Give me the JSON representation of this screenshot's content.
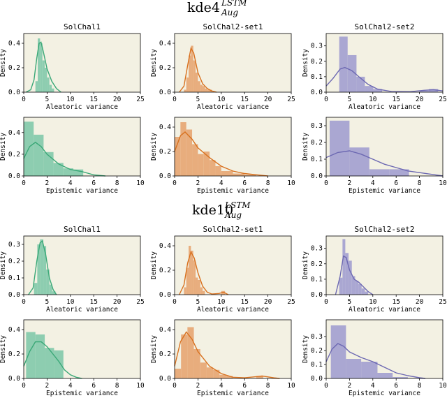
{
  "figure": {
    "blocks": [
      {
        "title_main": "kde4",
        "title_sup": "LSTM",
        "title_sub": "Aug"
      },
      {
        "title_main": "kde10",
        "title_sup": "LSTM",
        "title_sub": "Aug"
      }
    ]
  },
  "colors": {
    "panel_bg": "#f3f1e3",
    "green": "#3aa877",
    "orange": "#d8711f",
    "purple": "#6c68b2"
  },
  "chart_data": [
    {
      "type": "bar",
      "title": "SolChal1",
      "xlabel": "Aleatoric variance",
      "ylabel": "Density",
      "xlim": [
        0,
        25
      ],
      "ylim": [
        0,
        0.48
      ],
      "xticks": [
        0,
        5,
        10,
        15,
        20,
        25
      ],
      "yticks": [
        0.0,
        0.2,
        0.4
      ],
      "color": "green",
      "bins": [
        [
          2.5,
          3.0,
          0.09
        ],
        [
          3.0,
          3.5,
          0.44
        ],
        [
          3.5,
          4.0,
          0.4
        ],
        [
          4.0,
          4.5,
          0.26
        ],
        [
          4.5,
          5.0,
          0.2
        ],
        [
          5.0,
          5.5,
          0.12
        ],
        [
          5.5,
          6.0,
          0.06
        ],
        [
          6.0,
          6.5,
          0.03
        ]
      ],
      "kde": [
        [
          0.5,
          0.0
        ],
        [
          1.5,
          0.02
        ],
        [
          2.2,
          0.1
        ],
        [
          2.8,
          0.28
        ],
        [
          3.3,
          0.4
        ],
        [
          3.7,
          0.41
        ],
        [
          4.2,
          0.33
        ],
        [
          5.0,
          0.19
        ],
        [
          6.0,
          0.09
        ],
        [
          7.0,
          0.03
        ],
        [
          8.0,
          0.0
        ]
      ]
    },
    {
      "type": "bar",
      "title": "SolChal2-set1",
      "xlabel": "Aleatoric variance",
      "ylabel": "Density",
      "xlim": [
        0,
        25
      ],
      "ylim": [
        0,
        0.48
      ],
      "xticks": [
        0,
        5,
        10,
        15,
        20,
        25
      ],
      "yticks": [
        0.0,
        0.2,
        0.4
      ],
      "color": "orange",
      "bins": [
        [
          2.0,
          2.5,
          0.02
        ],
        [
          2.5,
          3.0,
          0.12
        ],
        [
          3.0,
          3.5,
          0.3
        ],
        [
          3.5,
          4.0,
          0.38
        ],
        [
          4.0,
          4.5,
          0.26
        ],
        [
          4.5,
          5.0,
          0.16
        ],
        [
          5.0,
          5.5,
          0.09
        ],
        [
          5.5,
          6.0,
          0.06
        ],
        [
          6.0,
          6.5,
          0.05
        ],
        [
          6.5,
          7.0,
          0.03
        ],
        [
          7.0,
          8.0,
          0.02
        ]
      ],
      "kde": [
        [
          1.0,
          0.0
        ],
        [
          2.0,
          0.05
        ],
        [
          2.8,
          0.22
        ],
        [
          3.5,
          0.36
        ],
        [
          4.1,
          0.32
        ],
        [
          5.0,
          0.16
        ],
        [
          6.0,
          0.07
        ],
        [
          7.0,
          0.03
        ],
        [
          8.0,
          0.01
        ],
        [
          9.0,
          0.0
        ]
      ]
    },
    {
      "type": "bar",
      "title": "SolChal2-set2",
      "xlabel": "Aleatoric variance",
      "ylabel": "Density",
      "xlim": [
        0,
        25
      ],
      "ylim": [
        0,
        0.38
      ],
      "xticks": [
        0,
        5,
        10,
        15,
        20,
        25
      ],
      "yticks": [
        0.0,
        0.1,
        0.2,
        0.3
      ],
      "color": "purple",
      "bins": [
        [
          2.8,
          4.6,
          0.36
        ],
        [
          4.6,
          6.5,
          0.24
        ],
        [
          6.5,
          8.3,
          0.1
        ],
        [
          8.3,
          10.1,
          0.04
        ],
        [
          10.1,
          12.0,
          0.02
        ],
        [
          20.0,
          22.0,
          0.01
        ],
        [
          22.0,
          24.0,
          0.02
        ]
      ],
      "kde": [
        [
          0,
          0.04
        ],
        [
          1.5,
          0.09
        ],
        [
          3.0,
          0.15
        ],
        [
          4.0,
          0.16
        ],
        [
          5.5,
          0.14
        ],
        [
          7.0,
          0.1
        ],
        [
          9.0,
          0.05
        ],
        [
          11.0,
          0.02
        ],
        [
          14.0,
          0.004
        ],
        [
          18.0,
          0.003
        ],
        [
          21.0,
          0.012
        ],
        [
          23.0,
          0.016
        ],
        [
          25.0,
          0.008
        ]
      ]
    },
    {
      "type": "bar",
      "title": "",
      "xlabel": "Epistemic variance",
      "ylabel": "Density",
      "xlim": [
        0,
        10
      ],
      "ylim": [
        0,
        0.54
      ],
      "xticks": [
        0,
        2,
        4,
        6,
        8,
        10
      ],
      "yticks": [
        0.0,
        0.2,
        0.4
      ],
      "color": "green",
      "bins": [
        [
          0,
          0.85,
          0.5
        ],
        [
          0.85,
          1.7,
          0.38
        ],
        [
          1.7,
          2.55,
          0.22
        ],
        [
          2.55,
          3.4,
          0.12
        ],
        [
          3.4,
          4.25,
          0.07
        ],
        [
          4.25,
          5.1,
          0.06
        ]
      ],
      "kde": [
        [
          0,
          0.16
        ],
        [
          0.5,
          0.27
        ],
        [
          1.0,
          0.31
        ],
        [
          1.5,
          0.27
        ],
        [
          2.0,
          0.2
        ],
        [
          3.0,
          0.11
        ],
        [
          4.0,
          0.06
        ],
        [
          5.0,
          0.04
        ],
        [
          6.0,
          0.01
        ],
        [
          7.0,
          0.0
        ]
      ]
    },
    {
      "type": "bar",
      "title": "",
      "xlabel": "Epistemic variance",
      "ylabel": "Density",
      "xlim": [
        0,
        10
      ],
      "ylim": [
        0,
        0.48
      ],
      "xticks": [
        0,
        2,
        4,
        6,
        8,
        10
      ],
      "yticks": [
        0.0,
        0.2,
        0.4
      ],
      "color": "orange",
      "bins": [
        [
          0,
          0.5,
          0.32
        ],
        [
          0.5,
          1.0,
          0.44
        ],
        [
          1.0,
          1.5,
          0.38
        ],
        [
          1.5,
          2.0,
          0.26
        ],
        [
          2.0,
          2.5,
          0.18
        ],
        [
          2.5,
          3.0,
          0.2
        ],
        [
          3.0,
          3.5,
          0.13
        ],
        [
          3.5,
          4.0,
          0.08
        ],
        [
          4.0,
          5.0,
          0.04
        ],
        [
          5.0,
          6.0,
          0.02
        ],
        [
          6.0,
          7.0,
          0.01
        ]
      ],
      "kde": [
        [
          0,
          0.2
        ],
        [
          0.5,
          0.33
        ],
        [
          0.9,
          0.36
        ],
        [
          1.5,
          0.3
        ],
        [
          2.0,
          0.23
        ],
        [
          3.0,
          0.15
        ],
        [
          4.0,
          0.08
        ],
        [
          5.0,
          0.04
        ],
        [
          6.0,
          0.02
        ],
        [
          7.0,
          0.01
        ],
        [
          8.0,
          0.0
        ]
      ]
    },
    {
      "type": "bar",
      "title": "",
      "xlabel": "Epistemic variance",
      "ylabel": "Density",
      "xlim": [
        0,
        10
      ],
      "ylim": [
        0,
        0.35
      ],
      "xticks": [
        0,
        2,
        4,
        6,
        8,
        10
      ],
      "yticks": [
        0.0,
        0.1,
        0.2,
        0.3
      ],
      "color": "purple",
      "bins": [
        [
          0.3,
          2.0,
          0.33
        ],
        [
          2.0,
          3.7,
          0.17
        ],
        [
          3.7,
          5.4,
          0.04
        ],
        [
          5.4,
          7.1,
          0.04
        ]
      ],
      "kde": [
        [
          0,
          0.11
        ],
        [
          1.0,
          0.14
        ],
        [
          2.0,
          0.15
        ],
        [
          3.0,
          0.13
        ],
        [
          4.0,
          0.1
        ],
        [
          5.0,
          0.07
        ],
        [
          6.0,
          0.05
        ],
        [
          7.0,
          0.03
        ],
        [
          8.0,
          0.02
        ],
        [
          9.0,
          0.01
        ],
        [
          10.0,
          0.0
        ]
      ]
    },
    {
      "type": "bar",
      "title": "SolChal1",
      "xlabel": "Aleatoric variance",
      "ylabel": "Density",
      "xlim": [
        0,
        25
      ],
      "ylim": [
        0,
        0.35
      ],
      "xticks": [
        0,
        5,
        10,
        15,
        20,
        25
      ],
      "yticks": [
        0.0,
        0.1,
        0.2,
        0.3
      ],
      "color": "green",
      "bins": [
        [
          2.2,
          2.9,
          0.07
        ],
        [
          2.9,
          3.5,
          0.3
        ],
        [
          3.5,
          4.2,
          0.33
        ],
        [
          4.2,
          4.8,
          0.29
        ],
        [
          4.8,
          5.5,
          0.15
        ],
        [
          5.5,
          6.1,
          0.06
        ],
        [
          6.1,
          6.8,
          0.02
        ]
      ],
      "kde": [
        [
          1.0,
          0.0
        ],
        [
          2.0,
          0.04
        ],
        [
          2.8,
          0.2
        ],
        [
          3.5,
          0.31
        ],
        [
          4.0,
          0.32
        ],
        [
          4.7,
          0.24
        ],
        [
          5.5,
          0.1
        ],
        [
          6.3,
          0.03
        ],
        [
          7.0,
          0.0
        ]
      ]
    },
    {
      "type": "bar",
      "title": "SolChal2-set1",
      "xlabel": "Aleatoric variance",
      "ylabel": "Density",
      "xlim": [
        0,
        25
      ],
      "ylim": [
        0,
        0.48
      ],
      "xticks": [
        0,
        5,
        10,
        15,
        20,
        25
      ],
      "yticks": [
        0.0,
        0.2,
        0.4
      ],
      "color": "orange",
      "bins": [
        [
          2.0,
          2.5,
          0.06
        ],
        [
          2.5,
          3.0,
          0.22
        ],
        [
          3.0,
          3.5,
          0.4
        ],
        [
          3.5,
          4.0,
          0.36
        ],
        [
          4.0,
          4.5,
          0.28
        ],
        [
          4.5,
          5.0,
          0.14
        ],
        [
          5.0,
          5.5,
          0.12
        ],
        [
          5.5,
          6.0,
          0.06
        ],
        [
          6.0,
          6.5,
          0.03
        ],
        [
          10.0,
          10.8,
          0.03
        ]
      ],
      "kde": [
        [
          1.0,
          0.0
        ],
        [
          2.0,
          0.08
        ],
        [
          2.8,
          0.26
        ],
        [
          3.5,
          0.35
        ],
        [
          4.2,
          0.3
        ],
        [
          5.0,
          0.18
        ],
        [
          6.0,
          0.07
        ],
        [
          7.0,
          0.02
        ],
        [
          8.0,
          0.005
        ],
        [
          9.5,
          0.01
        ],
        [
          10.5,
          0.02
        ],
        [
          11.5,
          0.0
        ]
      ]
    },
    {
      "type": "bar",
      "title": "SolChal2-set2",
      "xlabel": "Aleatoric variance",
      "ylabel": "Density",
      "xlim": [
        0,
        25
      ],
      "ylim": [
        0,
        0.38
      ],
      "xticks": [
        0,
        5,
        10,
        15,
        20,
        25
      ],
      "yticks": [
        0.0,
        0.1,
        0.2,
        0.3
      ],
      "color": "purple",
      "bins": [
        [
          2.8,
          3.5,
          0.11
        ],
        [
          3.5,
          4.1,
          0.36
        ],
        [
          4.1,
          4.8,
          0.27
        ],
        [
          4.8,
          5.5,
          0.22
        ],
        [
          5.5,
          6.2,
          0.12
        ],
        [
          6.2,
          6.9,
          0.09
        ],
        [
          6.9,
          7.6,
          0.07
        ],
        [
          7.6,
          8.3,
          0.04
        ],
        [
          8.3,
          9.0,
          0.02
        ]
      ],
      "kde": [
        [
          2.0,
          0.0
        ],
        [
          3.0,
          0.12
        ],
        [
          3.7,
          0.25
        ],
        [
          4.3,
          0.24
        ],
        [
          5.0,
          0.16
        ],
        [
          6.0,
          0.1
        ],
        [
          7.0,
          0.08
        ],
        [
          8.0,
          0.05
        ],
        [
          9.0,
          0.02
        ],
        [
          10.0,
          0.0
        ]
      ]
    },
    {
      "type": "bar",
      "title": "",
      "xlabel": "Epistemic variance",
      "ylabel": "Density",
      "xlim": [
        0,
        10
      ],
      "ylim": [
        0,
        0.48
      ],
      "xticks": [
        0,
        2,
        4,
        6,
        8,
        10
      ],
      "yticks": [
        0.0,
        0.2,
        0.4
      ],
      "color": "green",
      "bins": [
        [
          0.2,
          1.0,
          0.38
        ],
        [
          1.0,
          1.8,
          0.36
        ],
        [
          1.8,
          2.6,
          0.25
        ],
        [
          2.6,
          3.4,
          0.23
        ]
      ],
      "kde": [
        [
          0,
          0.1
        ],
        [
          0.5,
          0.22
        ],
        [
          1.0,
          0.3
        ],
        [
          1.5,
          0.3
        ],
        [
          2.0,
          0.26
        ],
        [
          2.5,
          0.2
        ],
        [
          3.0,
          0.14
        ],
        [
          3.5,
          0.07
        ],
        [
          4.0,
          0.03
        ],
        [
          4.5,
          0.01
        ],
        [
          5.0,
          0.0
        ]
      ]
    },
    {
      "type": "bar",
      "title": "",
      "xlabel": "Epistemic variance",
      "ylabel": "Density",
      "xlim": [
        0,
        10
      ],
      "ylim": [
        0,
        0.48
      ],
      "xticks": [
        0,
        2,
        4,
        6,
        8,
        10
      ],
      "yticks": [
        0.0,
        0.2,
        0.4
      ],
      "color": "orange",
      "bins": [
        [
          0,
          0.55,
          0.08
        ],
        [
          0.55,
          1.1,
          0.36
        ],
        [
          1.1,
          1.65,
          0.42
        ],
        [
          1.65,
          2.2,
          0.24
        ],
        [
          2.2,
          2.75,
          0.13
        ],
        [
          2.75,
          3.3,
          0.09
        ],
        [
          3.3,
          3.85,
          0.07
        ],
        [
          3.85,
          4.4,
          0.03
        ],
        [
          4.4,
          5.0,
          0.02
        ],
        [
          7.0,
          7.6,
          0.02
        ]
      ],
      "kde": [
        [
          0,
          0.1
        ],
        [
          0.5,
          0.3
        ],
        [
          1.0,
          0.38
        ],
        [
          1.5,
          0.32
        ],
        [
          2.0,
          0.22
        ],
        [
          3.0,
          0.1
        ],
        [
          4.0,
          0.04
        ],
        [
          5.0,
          0.01
        ],
        [
          6.0,
          0.005
        ],
        [
          7.0,
          0.015
        ],
        [
          7.5,
          0.02
        ],
        [
          8.5,
          0.005
        ],
        [
          9.0,
          0.0
        ]
      ]
    },
    {
      "type": "bar",
      "title": "",
      "xlabel": "Epistemic variance",
      "ylabel": "Density",
      "xlim": [
        0,
        10
      ],
      "ylim": [
        0,
        0.42
      ],
      "xticks": [
        0,
        2,
        4,
        6,
        8,
        10
      ],
      "yticks": [
        0.0,
        0.1,
        0.2,
        0.3
      ],
      "color": "purple",
      "bins": [
        [
          0.4,
          1.7,
          0.38
        ],
        [
          1.7,
          3.0,
          0.14
        ],
        [
          3.0,
          4.4,
          0.12
        ],
        [
          4.4,
          5.7,
          0.04
        ],
        [
          5.7,
          7.0,
          0.01
        ]
      ],
      "kde": [
        [
          0,
          0.12
        ],
        [
          0.5,
          0.21
        ],
        [
          1.0,
          0.25
        ],
        [
          1.5,
          0.23
        ],
        [
          2.0,
          0.19
        ],
        [
          3.0,
          0.15
        ],
        [
          4.0,
          0.12
        ],
        [
          5.0,
          0.08
        ],
        [
          6.0,
          0.04
        ],
        [
          7.0,
          0.02
        ],
        [
          8.0,
          0.005
        ],
        [
          8.5,
          0.0
        ]
      ]
    }
  ]
}
